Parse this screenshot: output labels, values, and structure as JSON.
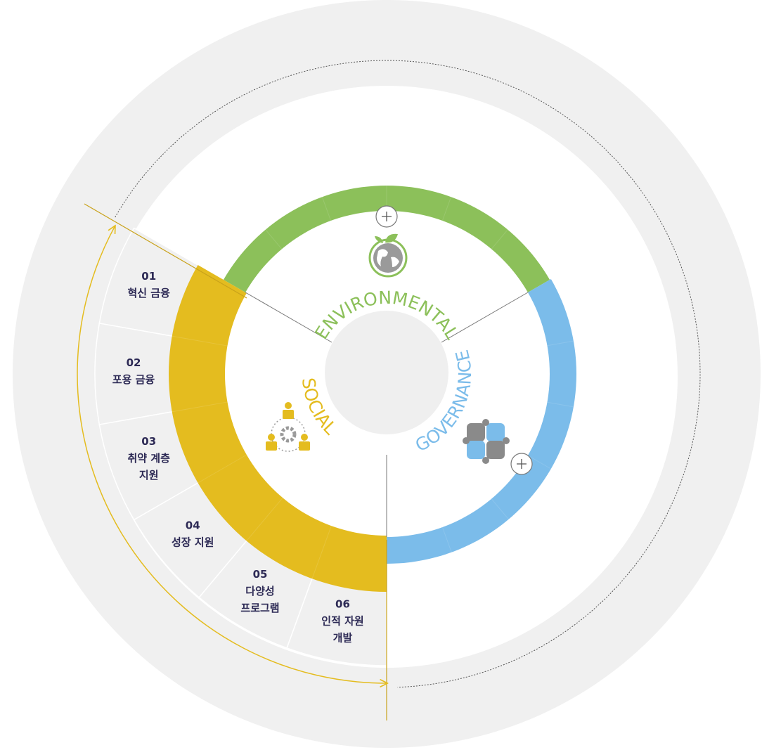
{
  "diagram": {
    "pillars": [
      {
        "label": "ENVIRONMENTAL",
        "color": "#8cc05a"
      },
      {
        "label": "GOVERNANCE",
        "color": "#7bbcea"
      },
      {
        "label": "SOCIAL",
        "color": "#e4bc1f"
      }
    ],
    "social_items": [
      {
        "number": "01",
        "lines": [
          "혁신 금융"
        ]
      },
      {
        "number": "02",
        "lines": [
          "포용 금융"
        ]
      },
      {
        "number": "03",
        "lines": [
          "취약 계층",
          "지원"
        ]
      },
      {
        "number": "04",
        "lines": [
          "성장 지원"
        ]
      },
      {
        "number": "05",
        "lines": [
          "다양성",
          "프로그램"
        ]
      },
      {
        "number": "06",
        "lines": [
          "인적 자원",
          "개발"
        ]
      }
    ]
  }
}
